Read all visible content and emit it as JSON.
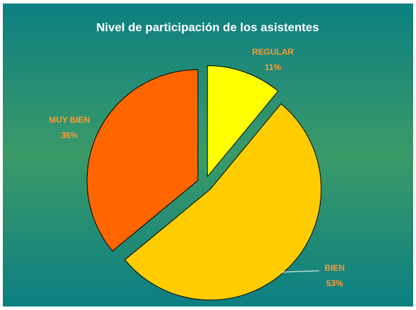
{
  "chart_data": {
    "type": "pie",
    "title": "Nivel de participación de los asistentes",
    "categories": [
      "REGULAR",
      "BIEN",
      "MUY BIEN"
    ],
    "values": [
      11,
      53,
      36
    ],
    "value_labels": [
      "11%",
      "53%",
      "36%"
    ],
    "colors": [
      "#ffff00",
      "#ffcc00",
      "#ff6600"
    ]
  }
}
